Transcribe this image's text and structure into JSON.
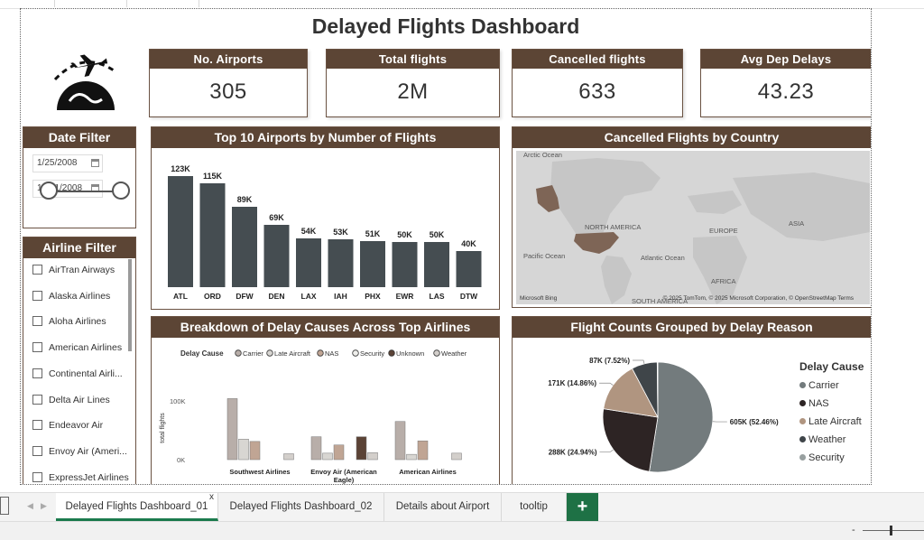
{
  "title": "Delayed Flights Dashboard",
  "kpis": [
    {
      "label": "No. Airports",
      "value": "305"
    },
    {
      "label": "Total flights",
      "value": "2M"
    },
    {
      "label": "Cancelled flights",
      "value": "633"
    },
    {
      "label": "Avg Dep Delays",
      "value": "43.23"
    }
  ],
  "date_filter": {
    "title": "Date Filter",
    "start": "1/25/2008",
    "end": "12/31/2008"
  },
  "airline_filter": {
    "title": "Airline Filter",
    "items": [
      "AirTran Airways",
      "Alaska Airlines",
      "Aloha Airlines",
      "American Airlines",
      "Continental Airli...",
      "Delta Air Lines",
      "Endeavor Air",
      "Envoy Air (Ameri...",
      "ExpressJet Airlines"
    ]
  },
  "map": {
    "title": "Cancelled Flights by Country",
    "labels": [
      "Arctic Ocean",
      "NORTH AMERICA",
      "EUROPE",
      "ASIA",
      "Pacific Ocean",
      "Atlantic Ocean",
      "AFRICA",
      "SOUTH AMERICA"
    ],
    "footer_left": "Microsoft Bing",
    "footer_right": "© 2025 TomTom, © 2025 Microsoft Corporation, © OpenStreetMap  Terms"
  },
  "colors": {
    "header_brown": "#5c4535",
    "bar": "#454d51",
    "tab_accent": "#1e7145"
  },
  "chart_data": [
    {
      "type": "bar",
      "title": "Top 10 Airports by Number of Flights",
      "categories": [
        "ATL",
        "ORD",
        "DFW",
        "DEN",
        "LAX",
        "IAH",
        "PHX",
        "EWR",
        "LAS",
        "DTW"
      ],
      "values": [
        123000,
        115000,
        89000,
        69000,
        54000,
        53000,
        51000,
        50000,
        50000,
        40000
      ],
      "data_labels": [
        "123K",
        "115K",
        "89K",
        "69K",
        "54K",
        "53K",
        "51K",
        "50K",
        "50K",
        "40K"
      ],
      "ylim": [
        0,
        130000
      ]
    },
    {
      "type": "bar",
      "title": "Breakdown of Delay Causes Across Top Airlines",
      "legend_title": "Delay Cause",
      "ylabel": "total flights",
      "yticks": [
        "100K",
        "0K"
      ],
      "ylim": [
        0,
        120000
      ],
      "categories": [
        "Southwest Airlines",
        "Envoy Air (American Eagle)",
        "American Airlines"
      ],
      "series": [
        {
          "name": "Carrier",
          "color": "#b8aea9",
          "values": [
            104000,
            39000,
            65000
          ]
        },
        {
          "name": "Late Aircraft",
          "color": "#d8d6d2",
          "values": [
            35000,
            11000,
            9000
          ]
        },
        {
          "name": "NAS",
          "color": "#c0a594",
          "values": [
            31000,
            25000,
            32000
          ]
        },
        {
          "name": "Security",
          "color": "#efefec",
          "values": [
            0,
            0,
            0
          ]
        },
        {
          "name": "Unknown",
          "color": "#5b4336",
          "values": [
            0,
            39000,
            0
          ]
        },
        {
          "name": "Weather",
          "color": "#d3cfcb",
          "values": [
            10000,
            12000,
            11000
          ]
        }
      ]
    },
    {
      "type": "pie",
      "title": "Flight Counts Grouped by Delay Reason",
      "legend_title": "Delay Cause",
      "slices": [
        {
          "name": "Carrier",
          "value": 605000,
          "label": "605K (52.46%)",
          "color": "#737b7d"
        },
        {
          "name": "NAS",
          "value": 288000,
          "label": "288K (24.94%)",
          "color": "#2d2424"
        },
        {
          "name": "Late Aircraft",
          "value": 171000,
          "label": "171K (14.86%)",
          "color": "#b09580"
        },
        {
          "name": "Weather",
          "value": 87000,
          "label": "87K (7.52%)",
          "color": "#3f4549"
        },
        {
          "name": "Security",
          "value": 2000,
          "label": "",
          "color": "#98a0a0"
        }
      ]
    }
  ],
  "tabs": [
    "Delayed Flights Dashboard_01",
    "Delayed Flights Dashboard_02",
    "Details about Airport",
    "tooltip"
  ],
  "add_tab_label": "+",
  "close_glyph": "x"
}
